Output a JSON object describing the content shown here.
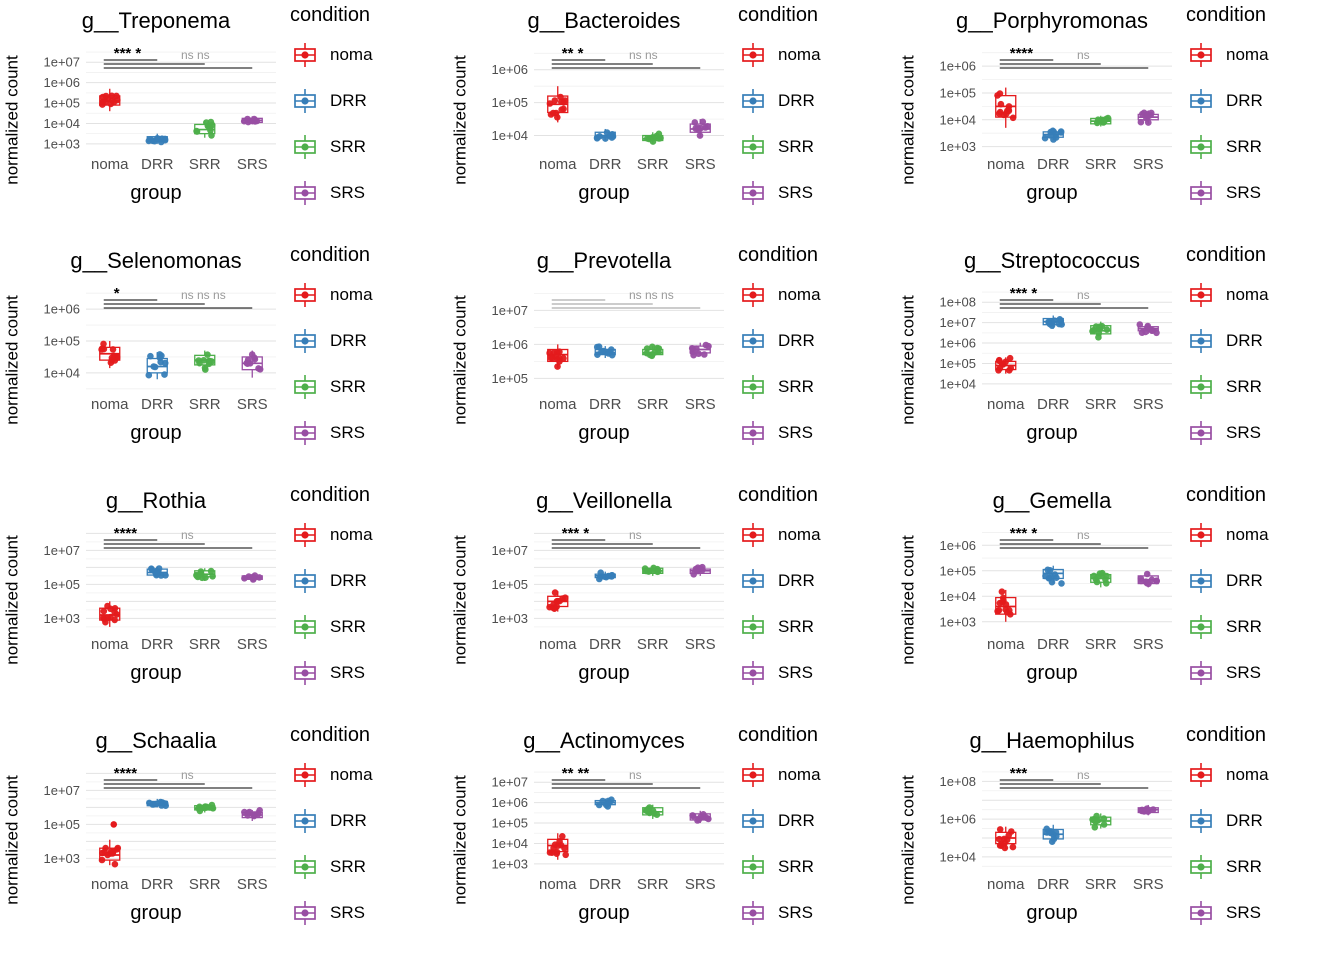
{
  "figure": {
    "ylab": "normalized count",
    "xlab": "group",
    "legend_title": "condition",
    "x_categories": [
      "noma",
      "DRR",
      "SRR",
      "SRS"
    ],
    "conditions": [
      {
        "label": "noma",
        "color": "#E41A1C"
      },
      {
        "label": "DRR",
        "color": "#377EB8"
      },
      {
        "label": "SRR",
        "color": "#4DAF4A"
      },
      {
        "label": "SRS",
        "color": "#984EA3"
      }
    ],
    "grid_major_color": "#e2e2e2",
    "grid_minor_color": "#f0f0f0",
    "tick_label_color": "#4d4d4d",
    "ns_color": "#9a9a9a"
  },
  "chart_data": [
    {
      "type": "boxplot-jitter",
      "title": "g__Treponema",
      "y_scale": "log10",
      "y_ticks": [
        "1e+07",
        "1e+06",
        "1e+05",
        "1e+04",
        "1e+03"
      ],
      "ylim_log10": [
        2.6,
        7.6
      ],
      "stars": "*** *",
      "ns": "ns ns",
      "groups": [
        {
          "condition": "noma",
          "lo": 4.6,
          "q1": 4.9,
          "med": 5.1,
          "q3": 5.35,
          "hi": 5.7,
          "n_points": 12
        },
        {
          "condition": "DRR",
          "lo": 3.0,
          "q1": 3.1,
          "med": 3.2,
          "q3": 3.35,
          "hi": 3.5,
          "n_points": 10
        },
        {
          "condition": "SRR",
          "lo": 3.3,
          "q1": 3.5,
          "med": 3.7,
          "q3": 3.95,
          "hi": 4.15,
          "n_points": 10
        },
        {
          "condition": "SRS",
          "lo": 3.95,
          "q1": 4.05,
          "med": 4.15,
          "q3": 4.25,
          "hi": 4.35,
          "n_points": 9
        }
      ]
    },
    {
      "type": "boxplot-jitter",
      "title": "g__Bacteroides",
      "y_scale": "log10",
      "y_ticks": [
        "1e+06",
        "1e+05",
        "1e+04"
      ],
      "ylim_log10": [
        3.5,
        6.6
      ],
      "stars": "** *",
      "ns": "ns ns",
      "groups": [
        {
          "condition": "noma",
          "lo": 4.4,
          "q1": 4.7,
          "med": 4.95,
          "q3": 5.2,
          "hi": 5.5,
          "n_points": 12
        },
        {
          "condition": "DRR",
          "lo": 3.85,
          "q1": 3.95,
          "med": 4.0,
          "q3": 4.1,
          "hi": 4.2,
          "n_points": 10
        },
        {
          "condition": "SRR",
          "lo": 3.75,
          "q1": 3.85,
          "med": 3.9,
          "q3": 4.0,
          "hi": 4.1,
          "n_points": 10
        },
        {
          "condition": "SRS",
          "lo": 3.95,
          "q1": 4.1,
          "med": 4.2,
          "q3": 4.35,
          "hi": 4.5,
          "n_points": 9
        }
      ]
    },
    {
      "type": "boxplot-jitter",
      "title": "g__Porphyromonas",
      "y_scale": "log10",
      "y_ticks": [
        "1e+06",
        "1e+05",
        "1e+04",
        "1e+03"
      ],
      "ylim_log10": [
        2.8,
        6.6
      ],
      "stars": "****",
      "ns": "ns",
      "groups": [
        {
          "condition": "noma",
          "lo": 3.7,
          "q1": 4.1,
          "med": 4.5,
          "q3": 4.9,
          "hi": 5.2,
          "n_points": 12
        },
        {
          "condition": "DRR",
          "lo": 3.25,
          "q1": 3.35,
          "med": 3.45,
          "q3": 3.55,
          "hi": 3.7,
          "n_points": 10
        },
        {
          "condition": "SRR",
          "lo": 3.75,
          "q1": 3.85,
          "med": 3.95,
          "q3": 4.05,
          "hi": 4.15,
          "n_points": 10
        },
        {
          "condition": "SRS",
          "lo": 3.85,
          "q1": 4.0,
          "med": 4.1,
          "q3": 4.2,
          "hi": 4.35,
          "n_points": 9
        }
      ]
    },
    {
      "type": "boxplot-jitter",
      "title": "g__Selenomonas",
      "y_scale": "log10",
      "y_ticks": [
        "1e+06",
        "1e+05",
        "1e+04"
      ],
      "ylim_log10": [
        3.4,
        6.6
      ],
      "stars": "*",
      "ns": "ns ns ns",
      "groups": [
        {
          "condition": "noma",
          "lo": 4.15,
          "q1": 4.4,
          "med": 4.6,
          "q3": 4.8,
          "hi": 5.0,
          "n_points": 12
        },
        {
          "condition": "DRR",
          "lo": 3.8,
          "q1": 4.0,
          "med": 4.2,
          "q3": 4.45,
          "hi": 4.65,
          "n_points": 10
        },
        {
          "condition": "SRR",
          "lo": 4.05,
          "q1": 4.25,
          "med": 4.4,
          "q3": 4.55,
          "hi": 4.7,
          "n_points": 10
        },
        {
          "condition": "SRS",
          "lo": 3.85,
          "q1": 4.1,
          "med": 4.3,
          "q3": 4.5,
          "hi": 4.7,
          "n_points": 9
        }
      ]
    },
    {
      "type": "boxplot-jitter",
      "title": "g__Prevotella",
      "y_scale": "log10",
      "y_ticks": [
        "1e+07",
        "1e+06",
        "1e+05"
      ],
      "ylim_log10": [
        4.6,
        7.6
      ],
      "stars": "",
      "ns": "ns ns ns",
      "groups": [
        {
          "condition": "noma",
          "lo": 5.3,
          "q1": 5.5,
          "med": 5.7,
          "q3": 5.85,
          "hi": 6.0,
          "n_points": 12
        },
        {
          "condition": "DRR",
          "lo": 5.6,
          "q1": 5.7,
          "med": 5.75,
          "q3": 5.85,
          "hi": 5.95,
          "n_points": 10
        },
        {
          "condition": "SRR",
          "lo": 5.6,
          "q1": 5.7,
          "med": 5.75,
          "q3": 5.85,
          "hi": 5.95,
          "n_points": 10
        },
        {
          "condition": "SRS",
          "lo": 5.65,
          "q1": 5.75,
          "med": 5.85,
          "q3": 5.95,
          "hi": 6.05,
          "n_points": 9
        }
      ]
    },
    {
      "type": "boxplot-jitter",
      "title": "g__Streptococcus",
      "y_scale": "log10",
      "y_ticks": [
        "1e+08",
        "1e+07",
        "1e+06",
        "1e+05",
        "1e+04"
      ],
      "ylim_log10": [
        3.6,
        8.6
      ],
      "stars": "*** *",
      "ns": "ns",
      "groups": [
        {
          "condition": "noma",
          "lo": 4.5,
          "q1": 4.7,
          "med": 4.9,
          "q3": 5.1,
          "hi": 5.3,
          "n_points": 12
        },
        {
          "condition": "DRR",
          "lo": 6.7,
          "q1": 6.9,
          "med": 7.05,
          "q3": 7.2,
          "hi": 7.35,
          "n_points": 10
        },
        {
          "condition": "SRR",
          "lo": 6.2,
          "q1": 6.45,
          "med": 6.6,
          "q3": 6.85,
          "hi": 7.05,
          "n_points": 10
        },
        {
          "condition": "SRS",
          "lo": 6.45,
          "q1": 6.6,
          "med": 6.7,
          "q3": 6.8,
          "hi": 6.95,
          "n_points": 9
        }
      ]
    },
    {
      "type": "boxplot-jitter",
      "title": "g__Rothia",
      "y_scale": "log10",
      "y_ticks": [
        "1e+07",
        "1e+05",
        "1e+03"
      ],
      "ylim_log10": [
        2.2,
        8.2
      ],
      "stars": "****",
      "ns": "ns",
      "groups": [
        {
          "condition": "noma",
          "lo": 2.5,
          "q1": 2.9,
          "med": 3.2,
          "q3": 3.6,
          "hi": 4.0,
          "n_points": 12
        },
        {
          "condition": "DRR",
          "lo": 5.4,
          "q1": 5.55,
          "med": 5.7,
          "q3": 5.9,
          "hi": 6.05,
          "n_points": 10
        },
        {
          "condition": "SRR",
          "lo": 5.2,
          "q1": 5.45,
          "med": 5.6,
          "q3": 5.8,
          "hi": 5.95,
          "n_points": 10
        },
        {
          "condition": "SRS",
          "lo": 5.15,
          "q1": 5.3,
          "med": 5.4,
          "q3": 5.5,
          "hi": 5.6,
          "n_points": 9
        }
      ]
    },
    {
      "type": "boxplot-jitter",
      "title": "g__Veillonella",
      "y_scale": "log10",
      "y_ticks": [
        "1e+07",
        "1e+05",
        "1e+03"
      ],
      "ylim_log10": [
        2.2,
        8.2
      ],
      "stars": "*** *",
      "ns": "ns",
      "groups": [
        {
          "condition": "noma",
          "lo": 3.4,
          "q1": 3.7,
          "med": 4.0,
          "q3": 4.3,
          "hi": 4.6,
          "n_points": 12
        },
        {
          "condition": "DRR",
          "lo": 5.3,
          "q1": 5.4,
          "med": 5.5,
          "q3": 5.6,
          "hi": 5.75,
          "n_points": 10
        },
        {
          "condition": "SRR",
          "lo": 5.5,
          "q1": 5.65,
          "med": 5.8,
          "q3": 5.95,
          "hi": 6.1,
          "n_points": 10
        },
        {
          "condition": "SRS",
          "lo": 5.5,
          "q1": 5.65,
          "med": 5.8,
          "q3": 5.9,
          "hi": 6.05,
          "n_points": 9
        }
      ]
    },
    {
      "type": "boxplot-jitter",
      "title": "g__Gemella",
      "y_scale": "log10",
      "y_ticks": [
        "1e+06",
        "1e+05",
        "1e+04",
        "1e+03"
      ],
      "ylim_log10": [
        2.6,
        6.6
      ],
      "stars": "*** *",
      "ns": "ns",
      "groups": [
        {
          "condition": "noma",
          "lo": 3.0,
          "q1": 3.3,
          "med": 3.6,
          "q3": 3.95,
          "hi": 4.25,
          "n_points": 12
        },
        {
          "condition": "DRR",
          "lo": 4.5,
          "q1": 4.7,
          "med": 4.9,
          "q3": 5.05,
          "hi": 5.2,
          "n_points": 10
        },
        {
          "condition": "SRR",
          "lo": 4.35,
          "q1": 4.55,
          "med": 4.7,
          "q3": 4.85,
          "hi": 5.0,
          "n_points": 10
        },
        {
          "condition": "SRS",
          "lo": 4.35,
          "q1": 4.5,
          "med": 4.65,
          "q3": 4.8,
          "hi": 4.95,
          "n_points": 9
        }
      ]
    },
    {
      "type": "boxplot-jitter",
      "title": "g__Schaalia",
      "y_scale": "log10",
      "y_ticks": [
        "1e+07",
        "1e+05",
        "1e+03"
      ],
      "ylim_log10": [
        2.2,
        8.2
      ],
      "stars": "****",
      "ns": "ns",
      "groups": [
        {
          "condition": "noma",
          "lo": 2.6,
          "q1": 2.9,
          "med": 3.2,
          "q3": 3.6,
          "hi": 4.1,
          "n_points": 12,
          "outliers": [
            5.0
          ]
        },
        {
          "condition": "DRR",
          "lo": 6.0,
          "q1": 6.1,
          "med": 6.2,
          "q3": 6.35,
          "hi": 6.5,
          "n_points": 10
        },
        {
          "condition": "SRR",
          "lo": 5.7,
          "q1": 5.85,
          "med": 5.95,
          "q3": 6.1,
          "hi": 6.2,
          "n_points": 10
        },
        {
          "condition": "SRS",
          "lo": 5.2,
          "q1": 5.4,
          "med": 5.55,
          "q3": 5.7,
          "hi": 5.85,
          "n_points": 9
        }
      ]
    },
    {
      "type": "boxplot-jitter",
      "title": "g__Actinomyces",
      "y_scale": "log10",
      "y_ticks": [
        "1e+07",
        "1e+06",
        "1e+05",
        "1e+04",
        "1e+03"
      ],
      "ylim_log10": [
        2.6,
        7.6
      ],
      "stars": "** **",
      "ns": "ns",
      "groups": [
        {
          "condition": "noma",
          "lo": 3.2,
          "q1": 3.6,
          "med": 3.9,
          "q3": 4.2,
          "hi": 4.5,
          "n_points": 12
        },
        {
          "condition": "DRR",
          "lo": 5.75,
          "q1": 5.9,
          "med": 6.0,
          "q3": 6.1,
          "hi": 6.2,
          "n_points": 10
        },
        {
          "condition": "SRR",
          "lo": 5.2,
          "q1": 5.4,
          "med": 5.55,
          "q3": 5.75,
          "hi": 5.9,
          "n_points": 10
        },
        {
          "condition": "SRS",
          "lo": 5.0,
          "q1": 5.15,
          "med": 5.3,
          "q3": 5.45,
          "hi": 5.6,
          "n_points": 9
        }
      ]
    },
    {
      "type": "boxplot-jitter",
      "title": "g__Haemophilus",
      "y_scale": "log10",
      "y_ticks": [
        "1e+08",
        "1e+06",
        "1e+04"
      ],
      "ylim_log10": [
        3.2,
        8.6
      ],
      "stars": "***",
      "ns": "ns",
      "groups": [
        {
          "condition": "noma",
          "lo": 4.4,
          "q1": 4.7,
          "med": 5.0,
          "q3": 5.3,
          "hi": 5.6,
          "n_points": 12
        },
        {
          "condition": "DRR",
          "lo": 4.7,
          "q1": 4.95,
          "med": 5.2,
          "q3": 5.45,
          "hi": 5.7,
          "n_points": 10
        },
        {
          "condition": "SRR",
          "lo": 5.5,
          "q1": 5.7,
          "med": 5.9,
          "q3": 6.1,
          "hi": 6.3,
          "n_points": 10
        },
        {
          "condition": "SRS",
          "lo": 6.2,
          "q1": 6.35,
          "med": 6.5,
          "q3": 6.6,
          "hi": 6.75,
          "n_points": 9
        }
      ]
    }
  ]
}
